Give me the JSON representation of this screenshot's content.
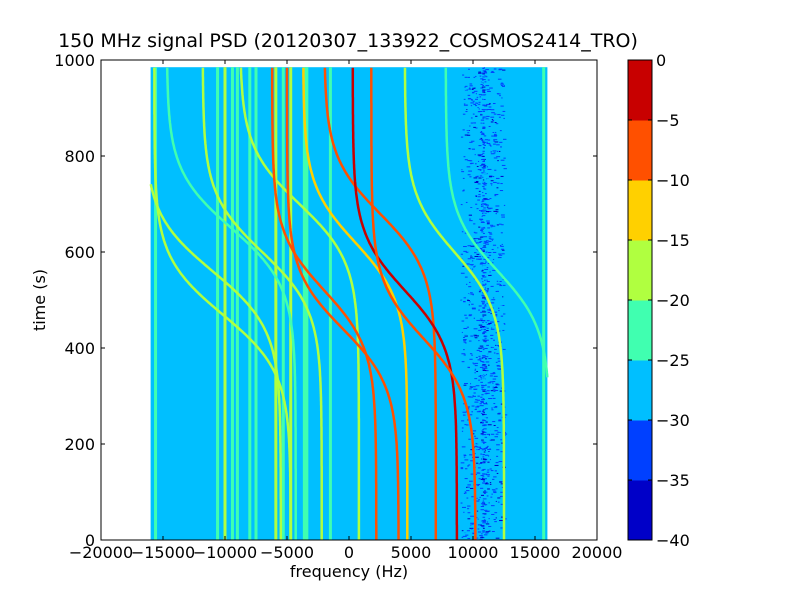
{
  "chart_data": {
    "type": "heatmap",
    "title": "150 MHz signal PSD (20120307_133922_COSMOS2414_TRO)",
    "xlabel": "frequency (Hz)",
    "ylabel": "time (s)",
    "xlim": [
      -20000,
      20000
    ],
    "ylim": [
      0,
      1000
    ],
    "xticks": [
      -20000,
      -15000,
      -10000,
      -5000,
      0,
      5000,
      10000,
      15000,
      20000
    ],
    "xtick_labels": [
      "−20000",
      "−15000",
      "−10000",
      "−5000",
      "0",
      "5000",
      "10000",
      "15000",
      "20000"
    ],
    "yticks": [
      0,
      200,
      400,
      600,
      800,
      1000
    ],
    "ytick_labels": [
      "0",
      "200",
      "400",
      "600",
      "800",
      "1000"
    ],
    "data_extent": {
      "x": [
        -16000,
        16000
      ],
      "y": [
        0,
        985
      ]
    },
    "colorbar": {
      "levels": [
        -40,
        -35,
        -30,
        -25,
        -20,
        -15,
        -10,
        -5,
        0
      ],
      "tick_labels": [
        "−40",
        "−35",
        "−30",
        "−25",
        "−20",
        "−15",
        "−10",
        "−5",
        "0"
      ],
      "colors": [
        "#0000c8",
        "#0040ff",
        "#00bfff",
        "#40ffb0",
        "#b0ff40",
        "#ffd000",
        "#ff5000",
        "#c80000"
      ]
    },
    "background_level": -27,
    "noise_band": {
      "x": [
        9000,
        12500
      ],
      "level": -32
    },
    "vertical_lines": [
      {
        "x": -15600,
        "level": -22
      },
      {
        "x": -10600,
        "level": -22
      },
      {
        "x": -10000,
        "level": -20
      },
      {
        "x": -9400,
        "level": -22
      },
      {
        "x": -9000,
        "level": -23
      },
      {
        "x": -8000,
        "level": -22
      },
      {
        "x": -7500,
        "level": -22
      },
      {
        "x": -5900,
        "level": -20
      },
      {
        "x": -5300,
        "level": -22
      },
      {
        "x": -4700,
        "level": -20
      },
      {
        "x": -3600,
        "level": -22
      },
      {
        "x": -3400,
        "level": -23
      },
      {
        "x": -1500,
        "level": -22
      },
      {
        "x": 15700,
        "level": -23
      }
    ],
    "doppler_tracks": [
      {
        "x_center": -10200,
        "t_center": 470,
        "amplitude": 5500,
        "width": 120,
        "level": -20
      },
      {
        "x_center": -11000,
        "t_center": 560,
        "amplitude": 5500,
        "width": 120,
        "level": -20
      },
      {
        "x_center": -9500,
        "t_center": 650,
        "amplitude": 5200,
        "width": 120,
        "level": -22
      },
      {
        "x_center": -7000,
        "t_center": 600,
        "amplitude": 4800,
        "width": 120,
        "level": -20
      },
      {
        "x_center": -4000,
        "t_center": 700,
        "amplitude": 4800,
        "width": 120,
        "level": -20
      },
      {
        "x_center": -2000,
        "t_center": 520,
        "amplitude": 4200,
        "width": 120,
        "level": -8
      },
      {
        "x_center": -500,
        "t_center": 440,
        "amplitude": 4500,
        "width": 120,
        "level": -10
      },
      {
        "x_center": 500,
        "t_center": 620,
        "amplitude": 4200,
        "width": 120,
        "level": -12
      },
      {
        "x_center": 2500,
        "t_center": 680,
        "amplitude": 4500,
        "width": 120,
        "level": -8
      },
      {
        "x_center": 4500,
        "t_center": 520,
        "amplitude": 4200,
        "width": 120,
        "level": -5
      },
      {
        "x_center": 6000,
        "t_center": 420,
        "amplitude": 4200,
        "width": 120,
        "level": -10
      },
      {
        "x_center": 8500,
        "t_center": 600,
        "amplitude": 4000,
        "width": 120,
        "level": -20
      },
      {
        "x_center": 12000,
        "t_center": 560,
        "amplitude": 4200,
        "width": 120,
        "level": -22
      }
    ]
  }
}
